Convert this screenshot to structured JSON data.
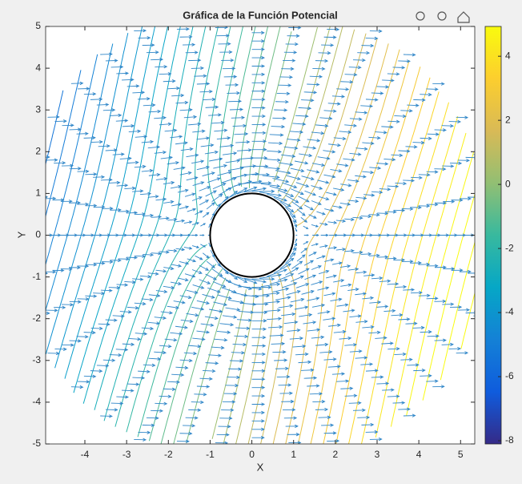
{
  "chart_data": {
    "type": "contour-quiver",
    "title": "Gráfica de la Función Potencial",
    "xlabel": "X",
    "ylabel": "Y",
    "xlim": [
      -4.94,
      5.34
    ],
    "ylim": [
      -5,
      5
    ],
    "xticks": [
      -4,
      -3,
      -2,
      -1,
      0,
      1,
      2,
      3,
      4,
      5
    ],
    "yticks": [
      -5,
      -4,
      -3,
      -2,
      -1,
      0,
      1,
      2,
      3,
      4,
      5
    ],
    "cylinder_radius": 1,
    "colorbar": {
      "lim": [
        -8.1,
        4.93
      ],
      "ticks": [
        -8,
        -6,
        -4,
        -2,
        0,
        2,
        4
      ]
    }
  }
}
